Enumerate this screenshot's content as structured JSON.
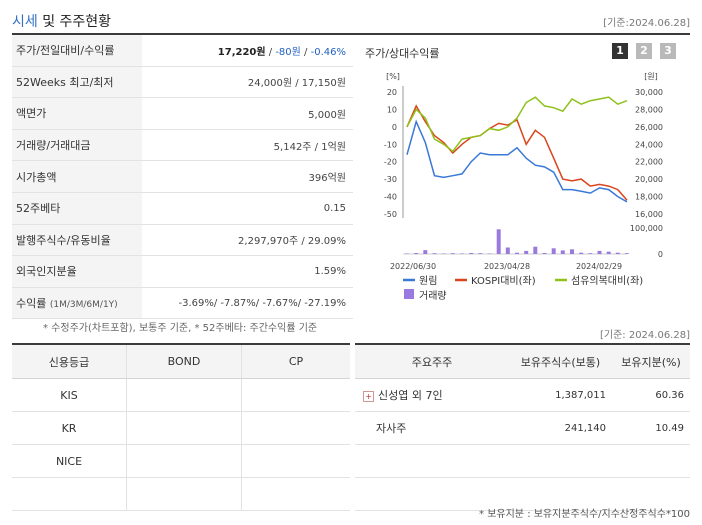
{
  "header": {
    "title_part1": "시세",
    "title_part2": " 및 주주현황",
    "date": "[기준:2024.06.28]"
  },
  "quote": {
    "rows": [
      {
        "label": "주가/전일대비/수익률",
        "price": "17,220원",
        "sep1": " / ",
        "change": "-80원",
        "sep2": " / ",
        "rate": "-0.46%"
      },
      {
        "label": "52Weeks 최고/최저",
        "value": "24,000원 / 17,150원"
      },
      {
        "label": "액면가",
        "value": "5,000원"
      },
      {
        "label": "거래량/거래대금",
        "value": "5,142주 / 1억원"
      },
      {
        "label": "시가총액",
        "value": "396억원"
      },
      {
        "label": "52주베타",
        "value": "0.15"
      },
      {
        "label": "발행주식수/유동비율",
        "value": "2,297,970주 / 29.09%"
      },
      {
        "label": "외국인지분율",
        "value": "1.59%"
      },
      {
        "label": "수익률",
        "label_sub": "(1M/3M/6M/1Y)",
        "value": "-3.69%/ -7.87%/ -7.67%/ -27.19%"
      }
    ],
    "note": "* 수정주가(차트포함), 보통주 기준, * 52주베타: 주간수익률 기준"
  },
  "chart_panel": {
    "title": "주가/상대수익률",
    "tabs": [
      "1",
      "2",
      "3"
    ],
    "active_tab": 0
  },
  "chart_data": {
    "type": "line",
    "x_tick_labels": [
      "2022/06/30",
      "2023/04/28",
      "2024/02/29"
    ],
    "left_axis": {
      "unit": "[%]",
      "ticks": [
        20,
        10,
        0,
        -10,
        -20,
        -30,
        -40,
        -50
      ],
      "ylim": [
        -50,
        20
      ]
    },
    "right_axis": {
      "unit": "[원]",
      "ticks": [
        "30,000",
        "28,000",
        "26,000",
        "24,000",
        "22,000",
        "20,000",
        "18,000",
        "16,000"
      ],
      "ylim": [
        16000,
        30000
      ]
    },
    "volume_axis": {
      "ticks": [
        "100,000",
        "0"
      ],
      "ylim": [
        0,
        100000
      ]
    },
    "series": [
      {
        "name": "원림",
        "color": "#3a78d8",
        "values": [
          -16,
          3,
          -9,
          -28,
          -29,
          -28,
          -27,
          -20,
          -15,
          -16,
          -16,
          -16,
          -12,
          -18,
          -22,
          -23,
          -26,
          -36,
          -36,
          -37,
          -38,
          -35,
          -36,
          -40,
          -43
        ]
      },
      {
        "name": "KOSPI대비(좌)",
        "color": "#d9451c",
        "values": [
          0,
          12,
          3,
          -5,
          -9,
          -15,
          -10,
          -6,
          -5,
          -1,
          2,
          1,
          4,
          -10,
          -2,
          -6,
          -18,
          -30,
          -31,
          -30,
          -34,
          -33,
          -34,
          -36,
          -42
        ]
      },
      {
        "name": "섬유의복대비(좌)",
        "color": "#8ec21a",
        "values": [
          0,
          10,
          5,
          -7,
          -10,
          -14,
          -7,
          -6,
          -5,
          -1,
          -2,
          0,
          5,
          14,
          17,
          12,
          11,
          9,
          16,
          13,
          15,
          16,
          17,
          13,
          15
        ]
      }
    ],
    "volume": {
      "name": "거래량",
      "color": "#9b7ae0",
      "values": [
        2000,
        4000,
        15000,
        3000,
        2000,
        3000,
        2000,
        4000,
        3000,
        2000,
        95000,
        25000,
        5000,
        12000,
        28000,
        4000,
        22000,
        14000,
        18000,
        5000,
        3000,
        12000,
        9000,
        5000,
        3000
      ]
    }
  },
  "credit": {
    "headers": [
      "신용등급",
      "BOND",
      "CP"
    ],
    "rows": [
      [
        "KIS",
        "",
        ""
      ],
      [
        "KR",
        "",
        ""
      ],
      [
        "NICE",
        "",
        ""
      ],
      [
        "",
        "",
        ""
      ]
    ]
  },
  "holders": {
    "date": "[기준: 2024.06.28]",
    "headers": [
      "주요주주",
      "보유주식수(보통)",
      "보유지분(%)"
    ],
    "rows": [
      {
        "name": "신성엽 외 7인",
        "shares": "1,387,011",
        "pct": "60.36",
        "expandable": true
      },
      {
        "name": "자사주",
        "shares": "241,140",
        "pct": "10.49",
        "expandable": false
      }
    ],
    "note": "* 보유지분 : 보유지분주식수/지수산정주식수*100"
  }
}
